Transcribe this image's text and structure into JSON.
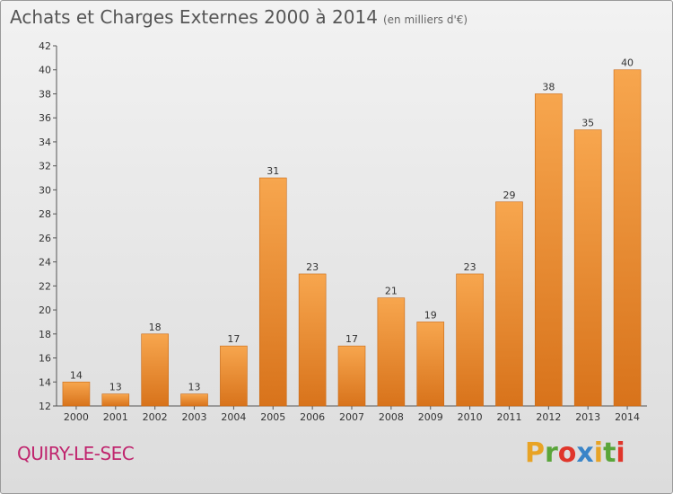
{
  "header": {
    "title": "Achats et Charges Externes 2000 à 2014",
    "unit": "(en milliers d'€)"
  },
  "commune": "QUIRY-LE-SEC",
  "brand": {
    "letters": [
      "P",
      "r",
      "o",
      "x",
      "i",
      "t",
      "i"
    ],
    "colors": [
      "#e8a325",
      "#5aa53a",
      "#e0362b",
      "#3a85c8",
      "#e8a325",
      "#5aa53a",
      "#e0362b"
    ]
  },
  "chart_data": {
    "type": "bar",
    "title": "Achats et Charges Externes 2000 à 2014",
    "categories": [
      "2000",
      "2001",
      "2002",
      "2003",
      "2004",
      "2005",
      "2006",
      "2007",
      "2008",
      "2009",
      "2010",
      "2011",
      "2012",
      "2013",
      "2014"
    ],
    "values": [
      14,
      13,
      18,
      13,
      17,
      31,
      23,
      17,
      21,
      19,
      23,
      29,
      38,
      35,
      40
    ],
    "ylim": [
      12,
      42
    ],
    "yticks": [
      12,
      14,
      16,
      18,
      20,
      22,
      24,
      26,
      28,
      30,
      32,
      34,
      36,
      38,
      40,
      42
    ],
    "grid": false,
    "bar_color": "#f08a24"
  }
}
